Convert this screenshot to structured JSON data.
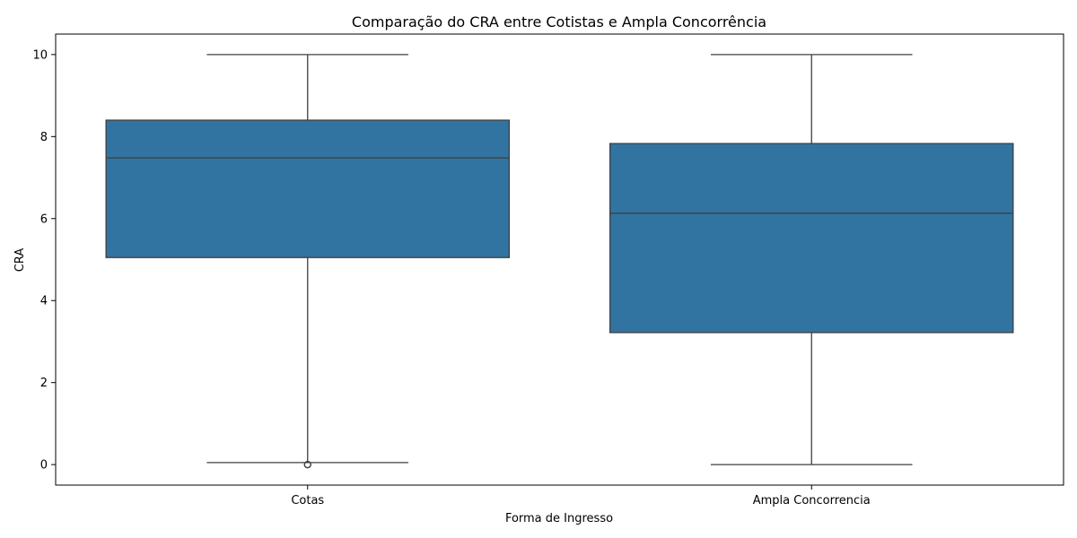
{
  "chart_data": {
    "type": "box",
    "title": "Comparação do CRA entre Cotistas e Ampla Concorrência",
    "xlabel": "Forma de Ingresso",
    "ylabel": "CRA",
    "ylim": [
      -0.5,
      10.5
    ],
    "yticks": [
      0,
      2,
      4,
      6,
      8,
      10
    ],
    "categories": [
      "Cotas",
      "Ampla Concorrencia"
    ],
    "boxes": [
      {
        "category": "Cotas",
        "whisker_low": 0.05,
        "q1": 5.05,
        "median": 7.48,
        "q3": 8.4,
        "whisker_high": 10,
        "outliers": [
          0.0,
          0.0
        ]
      },
      {
        "category": "Ampla Concorrencia",
        "whisker_low": 0.0,
        "q1": 3.22,
        "median": 6.13,
        "q3": 7.83,
        "whisker_high": 10,
        "outliers": []
      }
    ],
    "colors": {
      "box_fill": "#3274a1",
      "line": "#3f3f3f",
      "axis": "#000000"
    },
    "grid": false,
    "legend": "none"
  }
}
